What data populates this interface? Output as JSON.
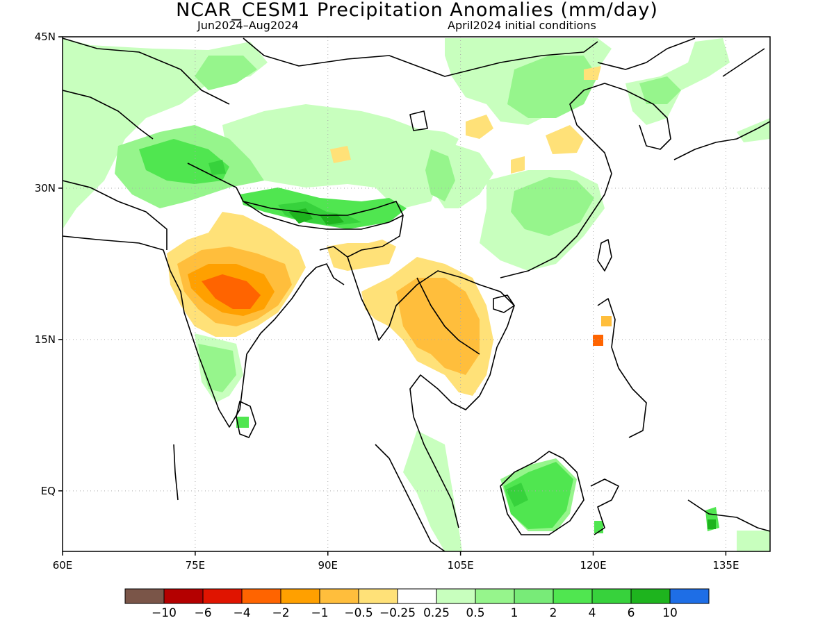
{
  "title": "NCAR_CESM1 Precipitation Anomalies (mm/day)",
  "subtitle_left": "Jun2024–Aug2024",
  "subtitle_right": "April2024 initial conditions",
  "map": {
    "lon_range": [
      60,
      140
    ],
    "lat_range": [
      -6,
      45
    ],
    "lat_ticks": [
      {
        "value": 45,
        "label": "45N"
      },
      {
        "value": 30,
        "label": "30N"
      },
      {
        "value": 15,
        "label": "15N"
      },
      {
        "value": 0,
        "label": "EQ"
      }
    ],
    "lon_ticks": [
      {
        "value": 60,
        "label": "60E"
      },
      {
        "value": 75,
        "label": "75E"
      },
      {
        "value": 90,
        "label": "90E"
      },
      {
        "value": 105,
        "label": "105E"
      },
      {
        "value": 120,
        "label": "120E"
      },
      {
        "value": 135,
        "label": "135E"
      }
    ],
    "grid": "dotted"
  },
  "colorbar": {
    "colors": [
      "#7a5548",
      "#b40000",
      "#e01400",
      "#ff6400",
      "#ffa000",
      "#ffbe3c",
      "#ffe178",
      "#ffffff",
      "#c8ffbe",
      "#96f58c",
      "#78eb78",
      "#50e650",
      "#37d23c",
      "#1eb41e",
      "#1e6ee6"
    ],
    "labels": [
      "-10",
      "-6",
      "-4",
      "-2",
      "-1",
      "-0.5",
      "-0.25",
      "0.25",
      "0.5",
      "1",
      "2",
      "4",
      "6",
      "10"
    ]
  },
  "colors": {
    "positive_light": "#c8ffbe",
    "positive_mid": "#96f58c",
    "positive_strong": "#50e650",
    "positive_darker": "#37d23c",
    "positive_darkest": "#1eb41e",
    "negative_light": "#ffe178",
    "negative_mid": "#ffbe3c",
    "negative_strong": "#ffa000",
    "negative_darker": "#ff6400",
    "coast": "#000000"
  }
}
